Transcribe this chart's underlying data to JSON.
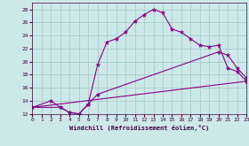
{
  "xlabel": "Windchill (Refroidissement éolien,°C)",
  "bg_color": "#cce8e8",
  "grid_color": "#aacccc",
  "line_color": "#880088",
  "xmin": 0,
  "xmax": 23,
  "ymin": 12,
  "ymax": 29,
  "series1_x": [
    0,
    2,
    3,
    4,
    5,
    6,
    7,
    8,
    9,
    10,
    11,
    12,
    13,
    14,
    15,
    16,
    17,
    18,
    19,
    20,
    21,
    22,
    23
  ],
  "series1_y": [
    13.0,
    14.0,
    13.0,
    12.2,
    12.0,
    13.5,
    19.5,
    23.0,
    23.5,
    24.5,
    26.2,
    27.2,
    28.0,
    27.5,
    25.0,
    24.5,
    23.5,
    22.5,
    22.3,
    22.5,
    19.0,
    18.5,
    17.0
  ],
  "series2_x": [
    0,
    3,
    4,
    5,
    6,
    7,
    20,
    21,
    22,
    23
  ],
  "series2_y": [
    13.0,
    13.0,
    12.2,
    12.0,
    13.5,
    15.0,
    21.5,
    21.0,
    19.0,
    17.5
  ],
  "series3_x": [
    0,
    23
  ],
  "series3_y": [
    13.0,
    17.0
  ],
  "xticks": [
    0,
    1,
    2,
    3,
    4,
    5,
    6,
    7,
    8,
    9,
    10,
    11,
    12,
    13,
    14,
    15,
    16,
    17,
    18,
    19,
    20,
    21,
    22,
    23
  ],
  "yticks": [
    12,
    14,
    16,
    18,
    20,
    22,
    24,
    26,
    28
  ]
}
